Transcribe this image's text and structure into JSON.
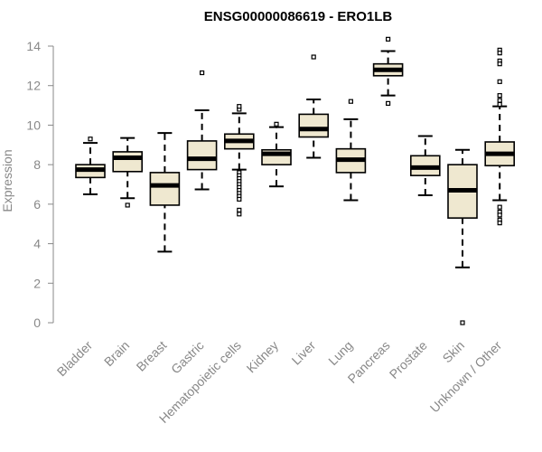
{
  "chart_data": {
    "type": "boxplot",
    "title": "ENSG00000086619 - ERO1LB",
    "xlabel": "",
    "ylabel": "Expression",
    "ylim": [
      0,
      14
    ],
    "yticks": [
      "0",
      "2",
      "4",
      "6",
      "8",
      "10",
      "12",
      "14"
    ],
    "categories": [
      "Bladder",
      "Brain",
      "Breast",
      "Gastric",
      "Hematopoietic cells",
      "Kidney",
      "Liver",
      "Lung",
      "Pancreas",
      "Prostate",
      "Skin",
      "Unknown / Other"
    ],
    "boxes": [
      {
        "category": "Bladder",
        "whisker_low": 6.5,
        "q1": 7.35,
        "median": 7.75,
        "q3": 8.0,
        "whisker_high": 9.1,
        "outliers": [
          9.3
        ]
      },
      {
        "category": "Brain",
        "whisker_low": 6.3,
        "q1": 7.65,
        "median": 8.35,
        "q3": 8.65,
        "whisker_high": 9.35,
        "outliers": [
          5.95
        ]
      },
      {
        "category": "Breast",
        "whisker_low": 3.6,
        "q1": 5.95,
        "median": 6.95,
        "q3": 7.6,
        "whisker_high": 9.6,
        "outliers": []
      },
      {
        "category": "Gastric",
        "whisker_low": 6.75,
        "q1": 7.75,
        "median": 8.3,
        "q3": 9.2,
        "whisker_high": 10.75,
        "outliers": [
          12.65
        ]
      },
      {
        "category": "Hematopoietic cells",
        "whisker_low": 7.75,
        "q1": 8.8,
        "median": 9.2,
        "q3": 9.55,
        "whisker_high": 10.6,
        "outliers": [
          10.8,
          10.95,
          7.6,
          7.45,
          7.3,
          7.15,
          7.0,
          6.85,
          6.7,
          6.55,
          6.4,
          6.25,
          5.7,
          5.5
        ]
      },
      {
        "category": "Kidney",
        "whisker_low": 6.9,
        "q1": 8.0,
        "median": 8.55,
        "q3": 8.75,
        "whisker_high": 9.9,
        "outliers": [
          10.05
        ]
      },
      {
        "category": "Liver",
        "whisker_low": 8.35,
        "q1": 9.4,
        "median": 9.8,
        "q3": 10.55,
        "whisker_high": 11.3,
        "outliers": [
          13.45
        ]
      },
      {
        "category": "Lung",
        "whisker_low": 6.2,
        "q1": 7.6,
        "median": 8.25,
        "q3": 8.8,
        "whisker_high": 10.3,
        "outliers": [
          11.2
        ]
      },
      {
        "category": "Pancreas",
        "whisker_low": 11.5,
        "q1": 12.5,
        "median": 12.8,
        "q3": 13.1,
        "whisker_high": 13.75,
        "outliers": [
          14.35,
          11.1
        ]
      },
      {
        "category": "Prostate",
        "whisker_low": 6.45,
        "q1": 7.45,
        "median": 7.85,
        "q3": 8.45,
        "whisker_high": 9.45,
        "outliers": []
      },
      {
        "category": "Skin",
        "whisker_low": 2.8,
        "q1": 5.3,
        "median": 6.7,
        "q3": 8.0,
        "whisker_high": 8.75,
        "outliers": [
          0.0
        ]
      },
      {
        "category": "Unknown / Other",
        "whisker_low": 6.2,
        "q1": 7.95,
        "median": 8.55,
        "q3": 9.15,
        "whisker_high": 10.95,
        "outliers": [
          13.8,
          13.65,
          13.25,
          13.1,
          12.2,
          11.5,
          11.25,
          11.05,
          5.85,
          5.6,
          5.45,
          5.2,
          5.05
        ]
      }
    ],
    "colors": {
      "box_fill": "#efe8d0",
      "stroke": "#000000",
      "axis": "#888888",
      "label_text": "#888888",
      "title_text": "#000000"
    }
  }
}
